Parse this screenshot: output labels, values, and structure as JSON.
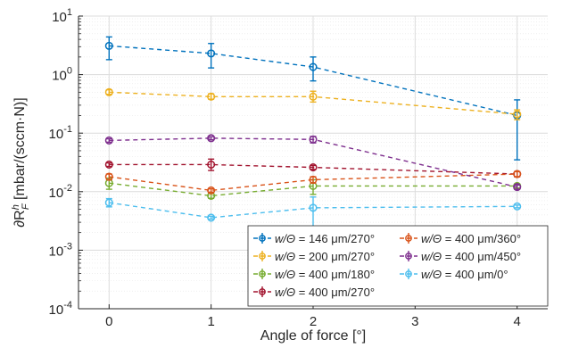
{
  "chart_data": {
    "type": "line",
    "title": "",
    "xlabel": "Angle of force [°]",
    "ylabel": "∂R^h_F [mbar/(sccm·N)]",
    "y_scale": "log",
    "ylim": [
      0.0001,
      10
    ],
    "xlim": [
      -0.3,
      4.3
    ],
    "x_ticks": [
      0,
      1,
      2,
      3,
      4
    ],
    "y_ticks": [
      0.0001,
      0.001,
      0.01,
      0.1,
      1,
      10
    ],
    "y_tick_labels": [
      {
        "base": "10",
        "exp": "-4"
      },
      {
        "base": "10",
        "exp": "-3"
      },
      {
        "base": "10",
        "exp": "-2"
      },
      {
        "base": "10",
        "exp": "-1"
      },
      {
        "base": "10",
        "exp": "0"
      },
      {
        "base": "10",
        "exp": "1"
      }
    ],
    "grid": true,
    "minor_grid": true,
    "legend_placement": "bottom-right",
    "legend_prefix": "w/Θ = ",
    "series": [
      {
        "name": "146 μm/270°",
        "color": "#0072BD",
        "x": [
          0,
          1,
          2,
          4
        ],
        "y": [
          3.1,
          2.3,
          1.35,
          0.2
        ],
        "err_low": [
          1.8,
          1.3,
          0.78,
          0.035
        ],
        "err_high": [
          4.4,
          3.4,
          2.0,
          0.37
        ]
      },
      {
        "name": "200 μm/270°",
        "color": "#EDB120",
        "x": [
          0,
          1,
          2,
          4
        ],
        "y": [
          0.5,
          0.42,
          0.42,
          0.21
        ],
        "err_low": [
          0.46,
          0.38,
          0.34,
          0.17
        ],
        "err_high": [
          0.55,
          0.47,
          0.52,
          0.25
        ]
      },
      {
        "name": "400 μm/180°",
        "color": "#77AC30",
        "x": [
          0,
          1,
          2,
          4
        ],
        "y": [
          0.014,
          0.0085,
          0.0125,
          0.0125
        ],
        "err_low": [
          0.011,
          0.0077,
          0.009,
          0.0115
        ],
        "err_high": [
          0.017,
          0.0093,
          0.016,
          0.0135
        ]
      },
      {
        "name": "400 μm/270°",
        "color": "#A2142F",
        "x": [
          0,
          1,
          2,
          4
        ],
        "y": [
          0.029,
          0.029,
          0.026,
          0.02
        ],
        "err_low": [
          0.027,
          0.023,
          0.024,
          0.018
        ],
        "err_high": [
          0.031,
          0.036,
          0.028,
          0.022
        ]
      },
      {
        "name": "400 μm/360°",
        "color": "#D95319",
        "x": [
          0,
          1,
          2,
          4
        ],
        "y": [
          0.018,
          0.0105,
          0.016,
          0.02
        ],
        "err_low": [
          0.016,
          0.0098,
          0.014,
          0.018
        ],
        "err_high": [
          0.02,
          0.0112,
          0.018,
          0.022
        ]
      },
      {
        "name": "400 μm/450°",
        "color": "#7E2F8E",
        "x": [
          0,
          1,
          2,
          4
        ],
        "y": [
          0.075,
          0.082,
          0.078,
          0.012
        ],
        "err_low": [
          0.07,
          0.077,
          0.068,
          0.011
        ],
        "err_high": [
          0.08,
          0.087,
          0.088,
          0.013
        ]
      },
      {
        "name": "400 μm/0°",
        "color": "#4DBEEE",
        "x": [
          0,
          1,
          2,
          4
        ],
        "y": [
          0.0065,
          0.0036,
          0.0053,
          0.0056
        ],
        "err_low": [
          0.0055,
          0.0034,
          0.0025,
          0.0053
        ],
        "err_high": [
          0.0076,
          0.0038,
          0.0081,
          0.0059
        ]
      }
    ]
  }
}
